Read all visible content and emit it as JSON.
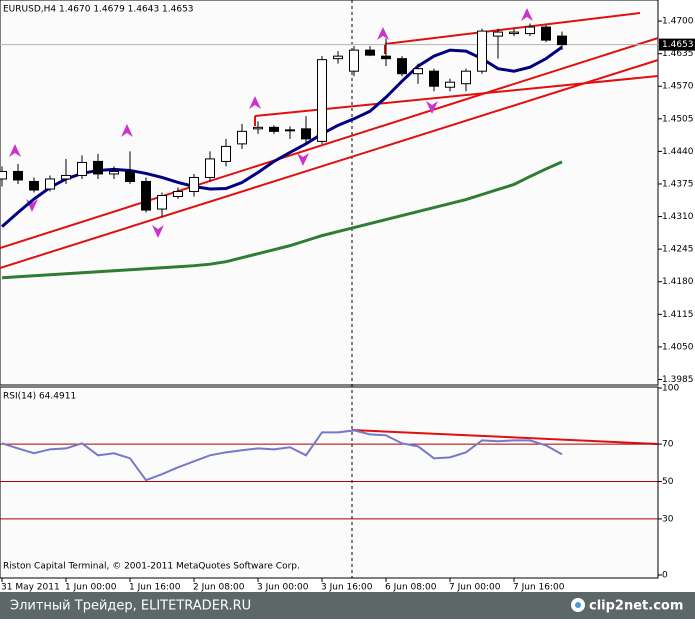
{
  "chart_data": [
    {
      "type": "candlestick",
      "title": "EURUSD,H4 1.4670 1.4679 1.4643 1.4653",
      "copyright": "Riston Capital Terminal, © 2001-2011 MetaQuotes Software Corp.",
      "categories": [
        "31 May 2011",
        null,
        null,
        null,
        "1 Jun 00:00",
        null,
        null,
        null,
        "1 Jun 16:00",
        null,
        null,
        null,
        "2 Jun 08:00",
        null,
        null,
        null,
        "3 Jun 00:00",
        null,
        null,
        null,
        "3 Jun 16:00",
        null,
        null,
        null,
        "6 Jun 08:00",
        null,
        null,
        null,
        "7 Jun 00:00",
        null,
        null,
        null,
        "7 Jun 16:00",
        null,
        null,
        null
      ],
      "open": [
        1.4385,
        1.44,
        1.438,
        1.4365,
        1.4385,
        1.4392,
        1.442,
        1.4395,
        1.44,
        1.438,
        1.4325,
        1.435,
        1.436,
        1.4388,
        1.442,
        1.4455,
        1.4485,
        1.4488,
        1.4482,
        1.4485,
        1.446,
        1.4625,
        1.46,
        1.4642,
        1.463,
        1.4625,
        1.4595,
        1.46,
        1.4568,
        1.4575,
        1.46,
        1.467,
        1.4675,
        1.4675,
        1.4688,
        1.467
      ],
      "high": [
        1.441,
        1.4415,
        1.4388,
        1.4392,
        1.4425,
        1.4432,
        1.4435,
        1.441,
        1.444,
        1.4388,
        1.4358,
        1.4368,
        1.4395,
        1.444,
        1.4465,
        1.4495,
        1.45,
        1.4492,
        1.449,
        1.451,
        1.463,
        1.464,
        1.465,
        1.465,
        1.4665,
        1.463,
        1.4615,
        1.4605,
        1.4585,
        1.4605,
        1.4685,
        1.4685,
        1.4685,
        1.4695,
        1.4692,
        1.4679
      ],
      "low": [
        1.437,
        1.4375,
        1.4358,
        1.436,
        1.4375,
        1.4385,
        1.4385,
        1.4385,
        1.4375,
        1.4318,
        1.431,
        1.4345,
        1.435,
        1.438,
        1.441,
        1.4445,
        1.4475,
        1.4475,
        1.4465,
        1.4455,
        1.4455,
        1.4615,
        1.459,
        1.463,
        1.461,
        1.459,
        1.4575,
        1.456,
        1.456,
        1.456,
        1.4595,
        1.4625,
        1.467,
        1.467,
        1.4658,
        1.4643
      ],
      "close": [
        1.44,
        1.4383,
        1.4363,
        1.4385,
        1.4392,
        1.4418,
        1.4395,
        1.44,
        1.438,
        1.4323,
        1.4352,
        1.436,
        1.4388,
        1.4425,
        1.445,
        1.448,
        1.4488,
        1.448,
        1.4483,
        1.4465,
        1.4623,
        1.463,
        1.4642,
        1.4632,
        1.4625,
        1.4595,
        1.4605,
        1.457,
        1.4578,
        1.46,
        1.468,
        1.4678,
        1.4678,
        1.4688,
        1.4662,
        1.4653
      ],
      "bull_color": "#ffffff",
      "bear_color": "#000000",
      "series": [
        {
          "color": "#000080",
          "values": [
            1.429,
            1.4318,
            1.4345,
            1.4368,
            1.4385,
            1.4396,
            1.4402,
            1.4404,
            1.4402,
            1.4396,
            1.4388,
            1.4378,
            1.437,
            1.4365,
            1.4366,
            1.4378,
            1.4398,
            1.442,
            1.4438,
            1.4455,
            1.4475,
            1.4492,
            1.4505,
            1.452,
            1.4548,
            1.458,
            1.461,
            1.463,
            1.4642,
            1.464,
            1.4625,
            1.4605,
            1.46,
            1.4608,
            1.4625,
            1.4648
          ]
        },
        {
          "color": "#2e7d32",
          "values": [
            1.4188,
            1.419,
            1.4192,
            1.4194,
            1.4196,
            1.4198,
            1.42,
            1.4202,
            1.4204,
            1.4206,
            1.4208,
            1.421,
            1.4212,
            1.4215,
            1.422,
            1.4228,
            1.4236,
            1.4244,
            1.4252,
            1.4262,
            1.4272,
            1.428,
            1.4288,
            1.4296,
            1.4304,
            1.4312,
            1.432,
            1.4328,
            1.4336,
            1.4344,
            1.4354,
            1.4364,
            1.4374,
            1.439,
            1.4405,
            1.4419
          ]
        }
      ],
      "last_price": {
        "value": 1.4653,
        "label": "1.4653"
      },
      "ylim": [
        1.3974,
        1.4742
      ],
      "yticks": [
        {
          "value": 1.47,
          "label": "1.4700"
        },
        {
          "value": 1.4635,
          "label": "1.4635"
        },
        {
          "value": 1.457,
          "label": "1.4570"
        },
        {
          "value": 1.4505,
          "label": "1.4505"
        },
        {
          "value": 1.444,
          "label": "1.4440"
        },
        {
          "value": 1.4375,
          "label": "1.4375"
        },
        {
          "value": 1.431,
          "label": "1.4310"
        },
        {
          "value": 1.4245,
          "label": "1.4245"
        },
        {
          "value": 1.418,
          "label": "1.4180"
        },
        {
          "value": 1.4115,
          "label": "1.4115"
        },
        {
          "value": 1.405,
          "label": "1.4050"
        },
        {
          "value": 1.3985,
          "label": "1.3985"
        }
      ]
    },
    {
      "type": "line",
      "title": "RSI(14) 64.4911",
      "color": "#7777cc",
      "values": [
        70.4,
        67.7,
        65.1,
        67.2,
        67.7,
        70.4,
        64.0,
        65.1,
        62.4,
        50.7,
        53.9,
        57.6,
        60.8,
        64.0,
        65.6,
        66.7,
        67.7,
        67.2,
        68.3,
        64.0,
        76.3,
        76.3,
        77.3,
        75.2,
        74.7,
        70.4,
        68.8,
        62.4,
        62.9,
        65.6,
        72.0,
        71.5,
        72.0,
        72.0,
        69.3,
        64.5
      ],
      "ylim": [
        0,
        100
      ],
      "yticks": [
        100,
        70,
        50,
        30,
        0
      ],
      "grid": true,
      "grid_color": "#aa0000"
    }
  ],
  "footer": {
    "left": "Элитный Трейдер, ELITETRADER.RU",
    "right": "clip2net.com"
  }
}
